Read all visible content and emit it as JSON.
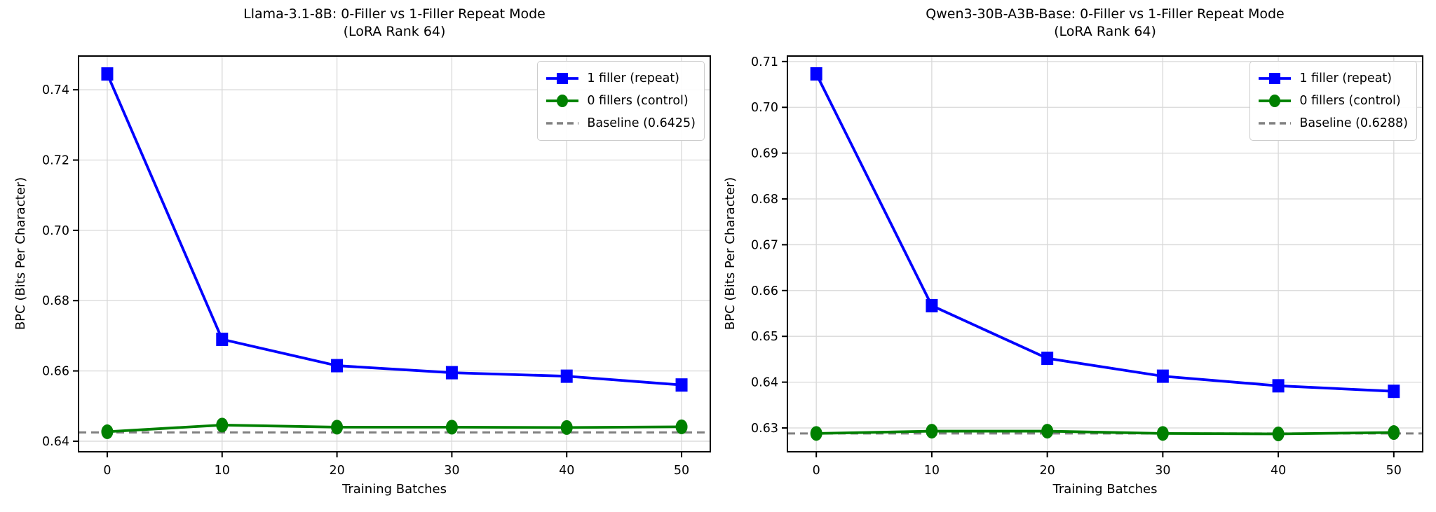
{
  "figure": {
    "background": "#ffffff",
    "font_color": "#000000"
  },
  "chart_data": [
    {
      "type": "line",
      "title": "Llama-3.1-8B: 0-Filler vs 1-Filler Repeat Mode",
      "subtitle": "(LoRA Rank 64)",
      "xlabel": "Training Batches",
      "ylabel": "BPC (Bits Per Character)",
      "x": [
        0,
        10,
        20,
        30,
        40,
        50
      ],
      "xlim": [
        -2.5,
        52.5
      ],
      "ylim": [
        0.637,
        0.7496
      ],
      "xtick_labels": [
        "0",
        "10",
        "20",
        "30",
        "40",
        "50"
      ],
      "ytick_values": [
        0.64,
        0.66,
        0.68,
        0.7,
        0.72,
        0.74
      ],
      "ytick_labels": [
        "0.64",
        "0.66",
        "0.68",
        "0.70",
        "0.72",
        "0.74"
      ],
      "grid": true,
      "legend_position": "top-right",
      "series": [
        {
          "name": "1 filler (repeat)",
          "color": "#0000ff",
          "marker": "square",
          "values": [
            0.7445,
            0.669,
            0.6615,
            0.6595,
            0.6585,
            0.656
          ]
        },
        {
          "name": "0 fillers (control)",
          "color": "#008000",
          "marker": "circle",
          "values": [
            0.6427,
            0.6446,
            0.644,
            0.644,
            0.6439,
            0.6441
          ]
        }
      ],
      "baseline": {
        "label": "Baseline (0.6425)",
        "value": 0.6425,
        "color": "#808080",
        "style": "dashed"
      }
    },
    {
      "type": "line",
      "title": "Qwen3-30B-A3B-Base: 0-Filler vs 1-Filler Repeat Mode",
      "subtitle": "(LoRA Rank 64)",
      "xlabel": "Training Batches",
      "ylabel": "BPC (Bits Per Character)",
      "x": [
        0,
        10,
        20,
        30,
        40,
        50
      ],
      "xlim": [
        -2.5,
        52.5
      ],
      "ylim": [
        0.6248,
        0.7112
      ],
      "xtick_labels": [
        "0",
        "10",
        "20",
        "30",
        "40",
        "50"
      ],
      "ytick_values": [
        0.63,
        0.64,
        0.65,
        0.66,
        0.67,
        0.68,
        0.69,
        0.7,
        0.71
      ],
      "ytick_labels": [
        "0.63",
        "0.64",
        "0.65",
        "0.66",
        "0.67",
        "0.68",
        "0.69",
        "0.70",
        "0.71"
      ],
      "grid": true,
      "legend_position": "top-right",
      "series": [
        {
          "name": "1 filler (repeat)",
          "color": "#0000ff",
          "marker": "square",
          "values": [
            0.7073,
            0.6567,
            0.6452,
            0.6413,
            0.6392,
            0.638
          ]
        },
        {
          "name": "0 fillers (control)",
          "color": "#008000",
          "marker": "circle",
          "values": [
            0.6288,
            0.6293,
            0.6293,
            0.6288,
            0.6287,
            0.629
          ]
        }
      ],
      "baseline": {
        "label": "Baseline (0.6288)",
        "value": 0.6288,
        "color": "#808080",
        "style": "dashed"
      }
    }
  ]
}
